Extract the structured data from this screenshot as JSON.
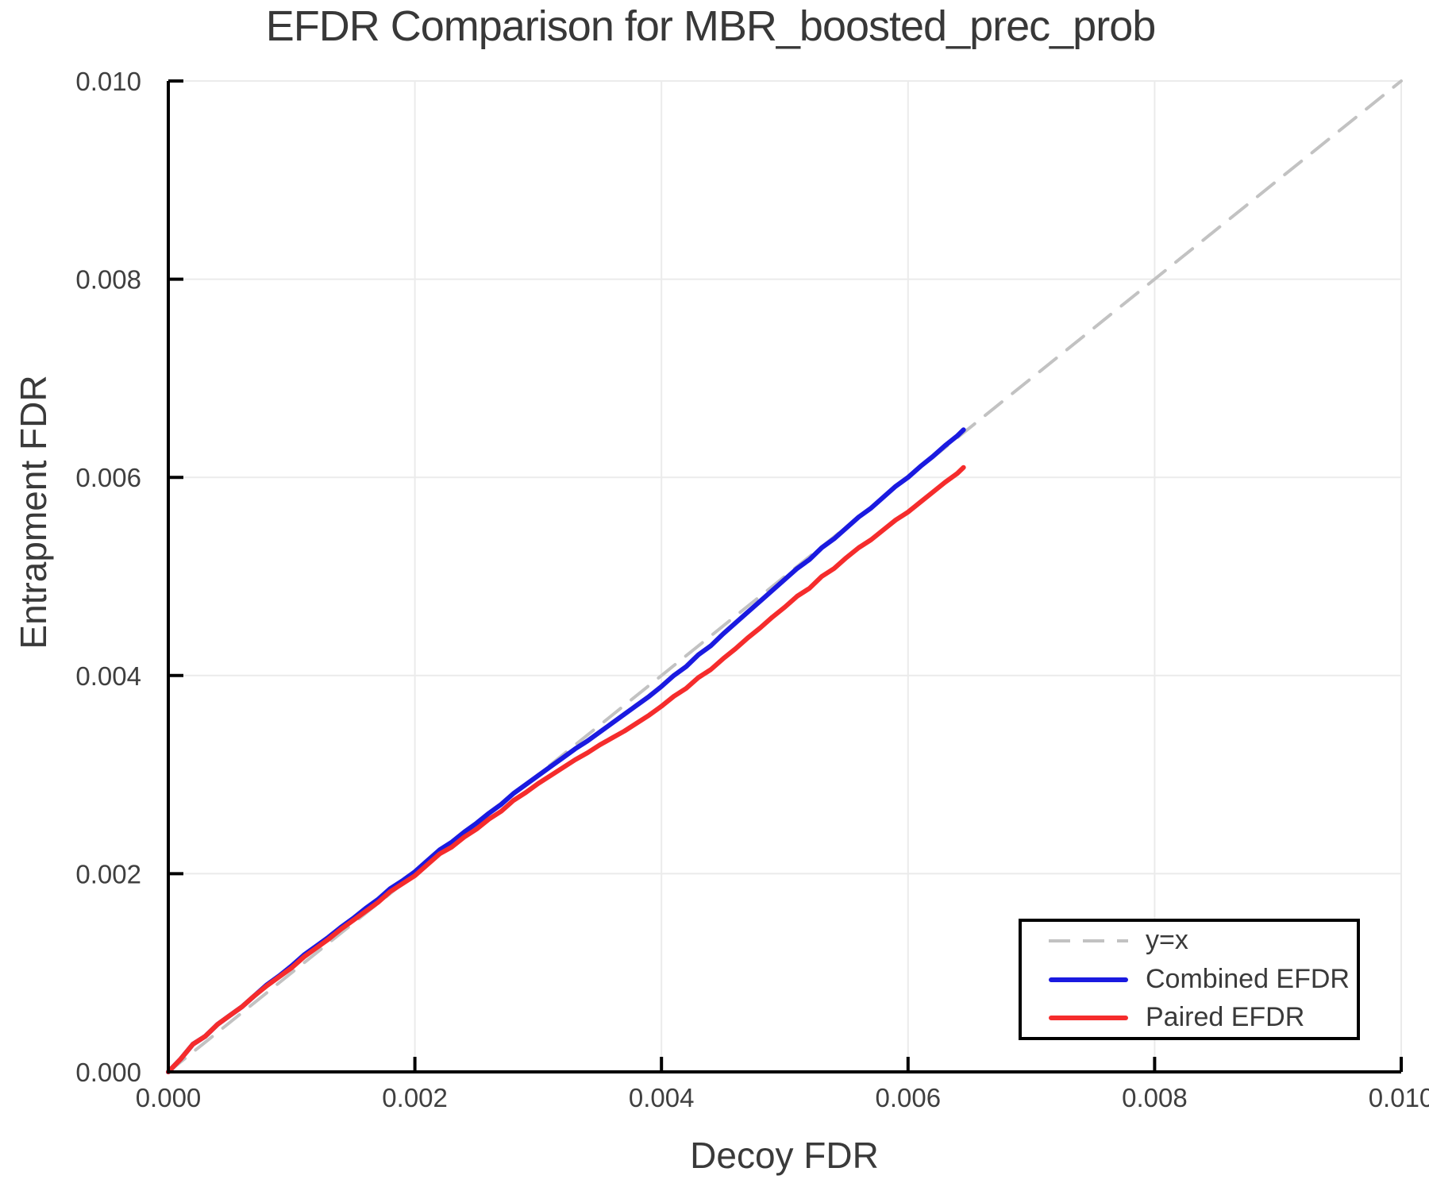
{
  "chart_data": {
    "type": "line",
    "title": "EFDR Comparison for MBR_boosted_prec_prob",
    "xlabel": "Decoy FDR",
    "ylabel": "Entrapment FDR",
    "xlim": [
      0,
      0.01
    ],
    "ylim": [
      0,
      0.01
    ],
    "grid": true,
    "legend_position": "bottom-right",
    "x_ticks": [
      0,
      0.002,
      0.004,
      0.006,
      0.008,
      0.01
    ],
    "x_tick_labels": [
      "0.000",
      "0.002",
      "0.004",
      "0.006",
      "0.008",
      "0.010"
    ],
    "y_ticks": [
      0,
      0.002,
      0.004,
      0.006,
      0.008,
      0.01
    ],
    "y_tick_labels": [
      "0.000",
      "0.002",
      "0.004",
      "0.006",
      "0.008",
      "0.010"
    ],
    "colors": {
      "grid": "#ebebeb",
      "spine": "#000000",
      "title_text": "#383838",
      "tick_text": "#3f3f3f",
      "identity": "#c2c2c2",
      "combined": "#1a1ae0",
      "paired": "#f52c2c"
    },
    "x": [
      0.0,
      0.0001,
      0.0002,
      0.0003,
      0.0004,
      0.0005,
      0.0006,
      0.0007,
      0.0008,
      0.0009,
      0.001,
      0.0011,
      0.0012,
      0.0013,
      0.0014,
      0.0015,
      0.0016,
      0.0017,
      0.0018,
      0.0019,
      0.002,
      0.0021,
      0.0022,
      0.0023,
      0.0024,
      0.0025,
      0.0026,
      0.0027,
      0.0028,
      0.0029,
      0.003,
      0.0031,
      0.0032,
      0.0033,
      0.0034,
      0.0035,
      0.0036,
      0.0037,
      0.0038,
      0.0039,
      0.004,
      0.0041,
      0.0042,
      0.0043,
      0.0044,
      0.0045,
      0.0046,
      0.0047,
      0.0048,
      0.0049,
      0.005,
      0.0051,
      0.0052,
      0.0053,
      0.0054,
      0.0055,
      0.0056,
      0.0057,
      0.0058,
      0.0059,
      0.006,
      0.0061,
      0.0062,
      0.0063,
      0.0064,
      0.00645
    ],
    "series": [
      {
        "id": "identity-line",
        "name": "y=x",
        "style": "dashed",
        "color": "#c2c2c2",
        "points": [
          [
            0,
            0
          ],
          [
            0.01,
            0.01
          ]
        ]
      },
      {
        "id": "combined-efdr-line",
        "name": "Combined EFDR",
        "style": "solid",
        "color": "#1a1ae0",
        "y": [
          0.0,
          0.00013,
          0.00028,
          0.00036,
          0.00048,
          0.00057,
          0.00066,
          0.00077,
          0.00088,
          0.00097,
          0.00107,
          0.00118,
          0.00127,
          0.00136,
          0.00146,
          0.00155,
          0.00165,
          0.00174,
          0.00185,
          0.00193,
          0.00202,
          0.00213,
          0.00224,
          0.00232,
          0.00242,
          0.00251,
          0.00261,
          0.0027,
          0.00281,
          0.0029,
          0.00299,
          0.00308,
          0.00317,
          0.00326,
          0.00334,
          0.00343,
          0.00352,
          0.00361,
          0.0037,
          0.00379,
          0.00389,
          0.004,
          0.00409,
          0.00421,
          0.0043,
          0.00442,
          0.00453,
          0.00464,
          0.00475,
          0.00486,
          0.00497,
          0.00508,
          0.00517,
          0.00529,
          0.00538,
          0.00549,
          0.0056,
          0.00569,
          0.0058,
          0.00591,
          0.006,
          0.00611,
          0.00621,
          0.00632,
          0.00642,
          0.00648
        ]
      },
      {
        "id": "paired-efdr-line",
        "name": "Paired EFDR",
        "style": "solid",
        "color": "#f52c2c",
        "y": [
          0.0,
          0.00013,
          0.00028,
          0.00036,
          0.00048,
          0.00057,
          0.00066,
          0.00077,
          0.00087,
          0.00096,
          0.00105,
          0.00116,
          0.00125,
          0.00134,
          0.00144,
          0.00153,
          0.00162,
          0.00171,
          0.00182,
          0.0019,
          0.00198,
          0.00209,
          0.0022,
          0.00227,
          0.00237,
          0.00245,
          0.00255,
          0.00263,
          0.00274,
          0.00282,
          0.00291,
          0.00299,
          0.00307,
          0.00315,
          0.00322,
          0.0033,
          0.00337,
          0.00344,
          0.00352,
          0.0036,
          0.00369,
          0.00379,
          0.00387,
          0.00398,
          0.00406,
          0.00417,
          0.00427,
          0.00438,
          0.00448,
          0.00459,
          0.00469,
          0.0048,
          0.00488,
          0.005,
          0.00508,
          0.00519,
          0.00529,
          0.00537,
          0.00547,
          0.00557,
          0.00565,
          0.00575,
          0.00585,
          0.00595,
          0.00604,
          0.0061
        ]
      }
    ]
  }
}
